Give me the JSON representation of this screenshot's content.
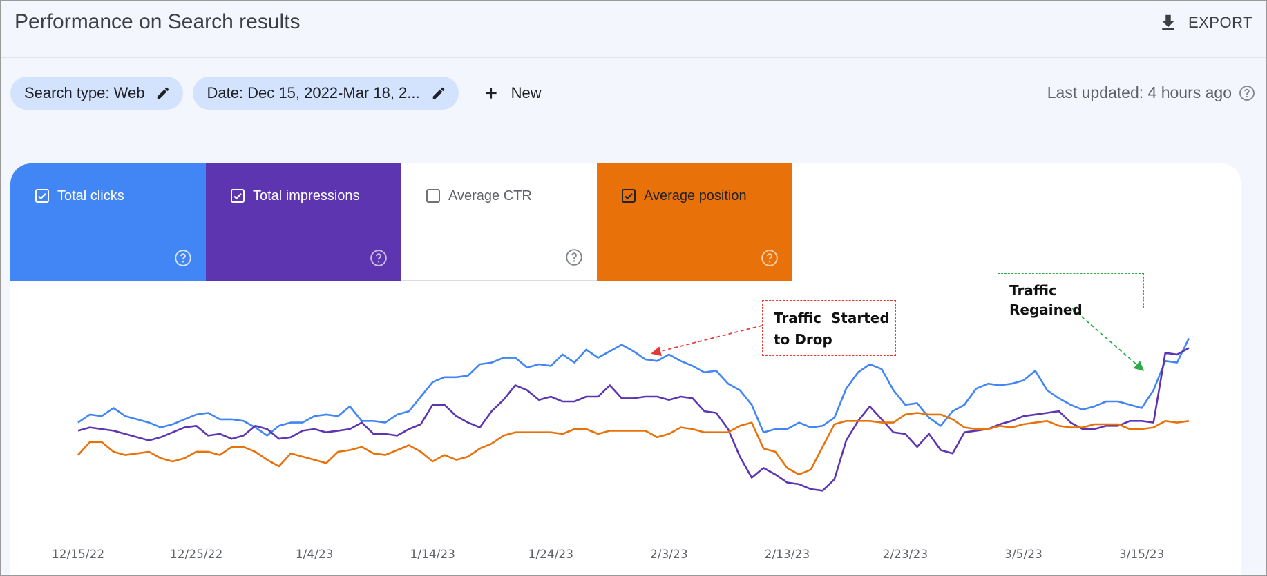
{
  "header": {
    "title": "Performance on Search results",
    "export_label": "EXPORT"
  },
  "filters": {
    "search_type": "Search type: Web",
    "date": "Date: Dec 15, 2022-Mar 18, 2...",
    "new_label": "New"
  },
  "last_updated": "Last updated: 4 hours ago",
  "metrics": [
    {
      "label": "Total clicks",
      "checked": true,
      "color": "#4285f4"
    },
    {
      "label": "Total impressions",
      "checked": true,
      "color": "#5e35b1"
    },
    {
      "label": "Average CTR",
      "checked": false,
      "color": "#ffffff"
    },
    {
      "label": "Average position",
      "checked": true,
      "color": "#e8710a"
    }
  ],
  "annotations": [
    {
      "text_line1": "Traffic  Started",
      "text_line2": "to Drop",
      "color": "#e53935"
    },
    {
      "text": "Traffic Regained",
      "color": "#2eab48"
    }
  ],
  "chart_data": {
    "type": "line",
    "title": "",
    "xlabel": "",
    "ylabel": "",
    "x_start": "12/15/22",
    "x_end": "3/18/23",
    "x_tick_labels": [
      "12/15/22",
      "12/25/22",
      "1/4/23",
      "1/14/23",
      "1/24/23",
      "2/3/23",
      "2/13/23",
      "2/23/23",
      "3/5/23",
      "3/15/23"
    ],
    "y_scale_note": "no y-axis shown; values are relative chart heights (0-100)",
    "grid": false,
    "series": [
      {
        "name": "Total clicks",
        "color": "#4285f4",
        "values": [
          44,
          49,
          48,
          53,
          48,
          46,
          44,
          41,
          43,
          46,
          49,
          50,
          46,
          46,
          45,
          41,
          36,
          42,
          44,
          44,
          48,
          49,
          48,
          54,
          45,
          45,
          44,
          49,
          51,
          60,
          69,
          72,
          72,
          73,
          80,
          81,
          84,
          84,
          78,
          80,
          79,
          86,
          81,
          89,
          84,
          88,
          92,
          88,
          83,
          82,
          86,
          82,
          79,
          75,
          76,
          68,
          64,
          55,
          38,
          40,
          40,
          44,
          41,
          42,
          47,
          65,
          75,
          80,
          77,
          64,
          55,
          56,
          47,
          42,
          51,
          55,
          65,
          68,
          67,
          68,
          70,
          76,
          64,
          59,
          55,
          52,
          54,
          57,
          57,
          55,
          53,
          64,
          82,
          81,
          96
        ]
      },
      {
        "name": "Total impressions",
        "color": "#5e35b1",
        "values": [
          39,
          41,
          40,
          39,
          37,
          35,
          33,
          35,
          38,
          41,
          42,
          36,
          37,
          34,
          36,
          42,
          40,
          34,
          35,
          39,
          40,
          38,
          39,
          40,
          44,
          37,
          37,
          36,
          40,
          43,
          55,
          55,
          48,
          44,
          41,
          51,
          58,
          67,
          64,
          58,
          60,
          57,
          57,
          60,
          60,
          67,
          59,
          59,
          60,
          60,
          58,
          60,
          59,
          51,
          50,
          40,
          23,
          10,
          16,
          12,
          7,
          6,
          3,
          2,
          9,
          33,
          45,
          54,
          46,
          38,
          37,
          29,
          37,
          27,
          25,
          38,
          39,
          40,
          43,
          45,
          48,
          49,
          50,
          51,
          44,
          40,
          40,
          42,
          42,
          45,
          45,
          44,
          87,
          86,
          90
        ]
      },
      {
        "name": "Average position",
        "color": "#e8710a",
        "values": [
          24,
          32,
          32,
          26,
          24,
          25,
          26,
          22,
          20,
          22,
          26,
          26,
          24,
          29,
          29,
          26,
          21,
          17,
          25,
          23,
          21,
          19,
          26,
          27,
          29,
          25,
          24,
          27,
          30,
          26,
          20,
          24,
          21,
          23,
          28,
          31,
          36,
          38,
          38,
          38,
          38,
          37,
          40,
          40,
          37,
          39,
          39,
          39,
          39,
          35,
          37,
          41,
          40,
          38,
          38,
          38,
          42,
          44,
          28,
          26,
          16,
          12,
          15,
          29,
          43,
          45,
          45,
          45,
          44,
          44,
          49,
          50,
          49,
          49,
          46,
          41,
          40,
          40,
          42,
          41,
          43,
          44,
          45,
          42,
          41,
          41,
          43,
          43,
          43,
          40,
          40,
          41,
          45,
          44,
          45
        ]
      }
    ]
  }
}
